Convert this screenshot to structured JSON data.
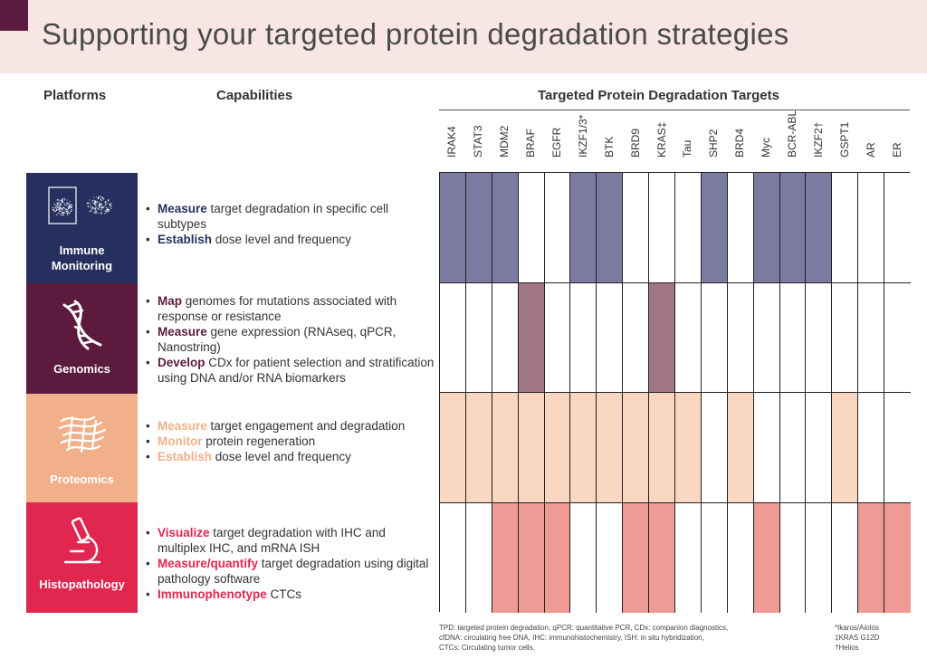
{
  "title": "Supporting your targeted protein degradation strategies",
  "headers": {
    "platforms": "Platforms",
    "capabilities": "Capabilities",
    "targets": "Targeted Protein Degradation Targets"
  },
  "platforms": [
    {
      "name": "Immune Monitoring",
      "label_line1": "Immune",
      "label_line2": "Monitoring",
      "color": "#26305f",
      "accent": "#26305f",
      "icon": "flow-cytometry-icon",
      "capabilities": [
        {
          "bold": "Measure",
          "text": " target degradation in specific cell subtypes"
        },
        {
          "bold": "Establish",
          "text": " dose level and frequency"
        }
      ]
    },
    {
      "name": "Genomics",
      "label_line1": "Genomics",
      "label_line2": "",
      "color": "#5b1a3e",
      "accent": "#5b1a3e",
      "icon": "dna-icon",
      "capabilities": [
        {
          "bold": "Map",
          "text": " genomes for mutations associated with response or resistance"
        },
        {
          "bold": "Measure",
          "text": " gene expression (RNAseq, qPCR, Nanostring)"
        },
        {
          "bold": "Develop",
          "text": " CDx for patient selection and stratification using DNA and/or RNA biomarkers"
        }
      ]
    },
    {
      "name": "Proteomics",
      "label_line1": "Proteomics",
      "label_line2": "",
      "color": "#f2b08a",
      "accent": "#f2b08a",
      "icon": "protein-icon",
      "capabilities": [
        {
          "bold": "Measure",
          "text": " target engagement and degradation"
        },
        {
          "bold": "Monitor",
          "text": " protein regeneration"
        },
        {
          "bold": "Establish",
          "text": " dose level and frequency"
        }
      ]
    },
    {
      "name": "Histopathology",
      "label_line1": "Histopathology",
      "label_line2": "",
      "color": "#e1264f",
      "accent": "#e1264f",
      "icon": "microscope-icon",
      "capabilities": [
        {
          "bold": "Visualize",
          "text": " target degradation with IHC and multiplex IHC, and mRNA ISH"
        },
        {
          "bold": "Measure/quantify",
          "text": " target degradation using digital pathology software"
        },
        {
          "bold": "Immunophenotype",
          "text": " CTCs"
        }
      ]
    }
  ],
  "targets": [
    "IRAK4",
    "STAT3",
    "MDM2",
    "BRAF",
    "EGFR",
    "IKZF1/3*",
    "BTK",
    "BRD9",
    "KRAS‡",
    "Tau",
    "SHP2",
    "BRD4",
    "Myc",
    "BCR-ABL",
    "IKZF2†",
    "GSPT1",
    "AR",
    "ER"
  ],
  "fill_colors": [
    "#7b7aa0",
    "#a07585",
    "#f9d7c0",
    "#f09a95"
  ],
  "matrix": [
    [
      1,
      1,
      1,
      0,
      0,
      1,
      1,
      0,
      0,
      0,
      1,
      0,
      1,
      1,
      1,
      0,
      0,
      0
    ],
    [
      0,
      0,
      0,
      1,
      0,
      0,
      0,
      0,
      1,
      0,
      0,
      0,
      0,
      0,
      0,
      0,
      0,
      0
    ],
    [
      1,
      1,
      1,
      1,
      1,
      1,
      1,
      1,
      1,
      1,
      0,
      1,
      0,
      0,
      0,
      1,
      0,
      0
    ],
    [
      0,
      0,
      1,
      1,
      1,
      0,
      0,
      1,
      1,
      0,
      0,
      0,
      1,
      0,
      0,
      0,
      1,
      1
    ]
  ],
  "footnotes": {
    "line1": "TPD: targeted protein degradation, qPCR: quantitative PCR, CDx: companion diagnostics,",
    "line2": "cfDNA: circulating free DNA, IHC: immunohistochemistry, ISH: in situ hybridization,",
    "line3": "CTCs: Circulating tumor cells.",
    "right1": "*Ikaros/Aiolos",
    "right2": "‡KRAS G12D",
    "right3": "†Helios"
  }
}
